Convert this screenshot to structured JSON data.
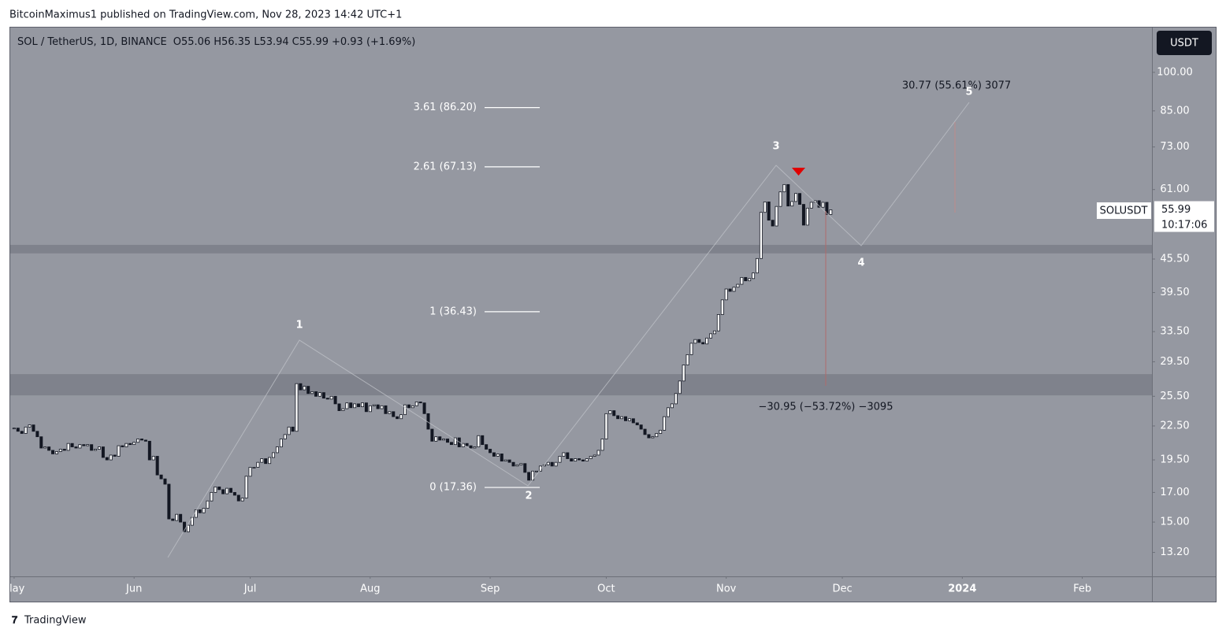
{
  "header": {
    "publisher": "BitcoinMaximus1 published on TradingView.com, Nov 28, 2023 14:42 UTC+1",
    "footer": "TradingView"
  },
  "chart_data": {
    "type": "candlestick",
    "title": "SOL / TetherUS, 1D, BINANCE",
    "ohlc_legend": [
      "O55.06",
      "H56.35",
      "L53.94",
      "C55.99",
      "+0.93 (+1.69%)"
    ],
    "unit": "USDT",
    "symbol": "SOLUSDT",
    "last_price": {
      "value": 55.99,
      "label": "55.99"
    },
    "countdown": "10:17:06",
    "log_scale": true,
    "up_color": "#ffffff",
    "down_color": "#131722",
    "background": "#9598a1",
    "xlim": [
      "2023-04-30",
      "2024-02-19"
    ],
    "xticks": [
      {
        "value": "2023-05-01",
        "label": "May"
      },
      {
        "value": "2023-06-01",
        "label": "Jun"
      },
      {
        "value": "2023-07-01",
        "label": "Jul"
      },
      {
        "value": "2023-08-01",
        "label": "Aug"
      },
      {
        "value": "2023-09-01",
        "label": "Sep"
      },
      {
        "value": "2023-10-01",
        "label": "Oct"
      },
      {
        "value": "2023-11-01",
        "label": "Nov"
      },
      {
        "value": "2023-12-01",
        "label": "Dec"
      },
      {
        "value": "2024-01-01",
        "label": "2024"
      },
      {
        "value": "2024-02-01",
        "label": "Feb"
      }
    ],
    "ylim": [
      11.93,
      120.8
    ],
    "yticks": [
      {
        "value": 100,
        "label": "100.00"
      },
      {
        "value": 85,
        "label": "85.00"
      },
      {
        "value": 73,
        "label": "73.00"
      },
      {
        "value": 61,
        "label": "61.00"
      },
      {
        "value": 45.5,
        "label": "45.50"
      },
      {
        "value": 39.5,
        "label": "39.50"
      },
      {
        "value": 33.5,
        "label": "33.50"
      },
      {
        "value": 29.5,
        "label": "29.50"
      },
      {
        "value": 25.5,
        "label": "25.50"
      },
      {
        "value": 22.5,
        "label": "22.50"
      },
      {
        "value": 19.5,
        "label": "19.50"
      },
      {
        "value": 17,
        "label": "17.00"
      },
      {
        "value": 15,
        "label": "15.00"
      },
      {
        "value": 13.2,
        "label": "13.20"
      }
    ],
    "fib_levels": [
      {
        "label": "3.61 (86.20)",
        "value": 86.2
      },
      {
        "label": "2.61 (67.13)",
        "value": 67.13
      },
      {
        "label": "1 (36.43)",
        "value": 36.43
      },
      {
        "label": "0 (17.36)",
        "value": 17.36
      }
    ],
    "zones": [
      {
        "low": 46.6,
        "high": 48.3
      },
      {
        "low": 25.6,
        "high": 28.0
      }
    ],
    "waves": [
      "1",
      "2",
      "3",
      "4",
      "5"
    ],
    "measures": [
      "30.77 (55.61%) 3077",
      "−30.95 (−53.72%) −3095"
    ],
    "x": [
      "2023-05-01",
      "2023-05-02",
      "2023-05-03",
      "2023-05-04",
      "2023-05-05",
      "2023-05-06",
      "2023-05-07",
      "2023-05-08",
      "2023-05-09",
      "2023-05-10",
      "2023-05-11",
      "2023-05-12",
      "2023-05-13",
      "2023-05-14",
      "2023-05-15",
      "2023-05-16",
      "2023-05-17",
      "2023-05-18",
      "2023-05-19",
      "2023-05-20",
      "2023-05-21",
      "2023-05-22",
      "2023-05-23",
      "2023-05-24",
      "2023-05-25",
      "2023-05-26",
      "2023-05-27",
      "2023-05-28",
      "2023-05-29",
      "2023-05-30",
      "2023-05-31",
      "2023-06-01",
      "2023-06-02",
      "2023-06-03",
      "2023-06-04",
      "2023-06-05",
      "2023-06-06",
      "2023-06-07",
      "2023-06-08",
      "2023-06-09",
      "2023-06-10",
      "2023-06-11",
      "2023-06-12",
      "2023-06-13",
      "2023-06-14",
      "2023-06-15",
      "2023-06-16",
      "2023-06-17",
      "2023-06-18",
      "2023-06-19",
      "2023-06-20",
      "2023-06-21",
      "2023-06-22",
      "2023-06-23",
      "2023-06-24",
      "2023-06-25",
      "2023-06-26",
      "2023-06-27",
      "2023-06-28",
      "2023-06-29",
      "2023-06-30",
      "2023-07-01",
      "2023-07-02",
      "2023-07-03",
      "2023-07-04",
      "2023-07-05",
      "2023-07-06",
      "2023-07-07",
      "2023-07-08",
      "2023-07-09",
      "2023-07-10",
      "2023-07-11",
      "2023-07-12",
      "2023-07-13",
      "2023-07-14",
      "2023-07-15",
      "2023-07-16",
      "2023-07-17",
      "2023-07-18",
      "2023-07-19",
      "2023-07-20",
      "2023-07-21",
      "2023-07-22",
      "2023-07-23",
      "2023-07-24",
      "2023-07-25",
      "2023-07-26",
      "2023-07-27",
      "2023-07-28",
      "2023-07-29",
      "2023-07-30",
      "2023-07-31",
      "2023-08-01",
      "2023-08-02",
      "2023-08-03",
      "2023-08-04",
      "2023-08-05",
      "2023-08-06",
      "2023-08-07",
      "2023-08-08",
      "2023-08-09",
      "2023-08-10",
      "2023-08-11",
      "2023-08-12",
      "2023-08-13",
      "2023-08-14",
      "2023-08-15",
      "2023-08-16",
      "2023-08-17",
      "2023-08-18",
      "2023-08-19",
      "2023-08-20",
      "2023-08-21",
      "2023-08-22",
      "2023-08-23",
      "2023-08-24",
      "2023-08-25",
      "2023-08-26",
      "2023-08-27",
      "2023-08-28",
      "2023-08-29",
      "2023-08-30",
      "2023-08-31",
      "2023-09-01",
      "2023-09-02",
      "2023-09-03",
      "2023-09-04",
      "2023-09-05",
      "2023-09-06",
      "2023-09-07",
      "2023-09-08",
      "2023-09-09",
      "2023-09-10",
      "2023-09-11",
      "2023-09-12",
      "2023-09-13",
      "2023-09-14",
      "2023-09-15",
      "2023-09-16",
      "2023-09-17",
      "2023-09-18",
      "2023-09-19",
      "2023-09-20",
      "2023-09-21",
      "2023-09-22",
      "2023-09-23",
      "2023-09-24",
      "2023-09-25",
      "2023-09-26",
      "2023-09-27",
      "2023-09-28",
      "2023-09-29",
      "2023-09-30",
      "2023-10-01",
      "2023-10-02",
      "2023-10-03",
      "2023-10-04",
      "2023-10-05",
      "2023-10-06",
      "2023-10-07",
      "2023-10-08",
      "2023-10-09",
      "2023-10-10",
      "2023-10-11",
      "2023-10-12",
      "2023-10-13",
      "2023-10-14",
      "2023-10-15",
      "2023-10-16",
      "2023-10-17",
      "2023-10-18",
      "2023-10-19",
      "2023-10-20",
      "2023-10-21",
      "2023-10-22",
      "2023-10-23",
      "2023-10-24",
      "2023-10-25",
      "2023-10-26",
      "2023-10-27",
      "2023-10-28",
      "2023-10-29",
      "2023-10-30",
      "2023-10-31",
      "2023-11-01",
      "2023-11-02",
      "2023-11-03",
      "2023-11-04",
      "2023-11-05",
      "2023-11-06",
      "2023-11-07",
      "2023-11-08",
      "2023-11-09",
      "2023-11-10",
      "2023-11-11",
      "2023-11-12",
      "2023-11-13",
      "2023-11-14",
      "2023-11-15",
      "2023-11-16",
      "2023-11-17",
      "2023-11-18",
      "2023-11-19",
      "2023-11-20",
      "2023-11-21",
      "2023-11-22",
      "2023-11-23",
      "2023-11-24",
      "2023-11-25",
      "2023-11-26",
      "2023-11-27",
      "2023-11-28"
    ],
    "values": [
      22.3,
      22.0,
      21.8,
      22.4,
      22.6,
      22.0,
      21.5,
      20.5,
      20.6,
      20.3,
      20.0,
      20.2,
      20.4,
      20.3,
      20.9,
      20.6,
      20.5,
      20.8,
      20.7,
      20.8,
      20.3,
      20.4,
      20.6,
      19.7,
      19.5,
      19.9,
      19.8,
      20.7,
      20.6,
      20.9,
      20.8,
      21.0,
      21.3,
      21.2,
      21.1,
      19.5,
      19.8,
      18.3,
      18.0,
      17.6,
      15.2,
      15.1,
      15.5,
      15.0,
      14.4,
      14.8,
      15.3,
      15.8,
      15.6,
      15.9,
      16.4,
      17.0,
      17.4,
      17.2,
      16.9,
      17.3,
      17.0,
      16.8,
      16.4,
      16.6,
      18.2,
      18.9,
      18.9,
      19.3,
      19.6,
      19.2,
      19.7,
      20.1,
      20.6,
      21.3,
      21.7,
      22.4,
      22.0,
      26.9,
      26.2,
      26.6,
      25.8,
      26.0,
      25.5,
      25.9,
      25.3,
      25.2,
      25.5,
      24.7,
      24.0,
      24.2,
      24.8,
      24.3,
      24.7,
      24.4,
      24.8,
      23.9,
      24.5,
      24.6,
      24.2,
      24.5,
      23.7,
      23.9,
      23.4,
      23.2,
      23.6,
      24.6,
      24.3,
      24.5,
      24.9,
      24.8,
      23.7,
      22.2,
      21.1,
      21.5,
      21.2,
      21.3,
      21.0,
      20.8,
      21.4,
      20.6,
      20.9,
      20.7,
      20.5,
      20.6,
      21.6,
      20.8,
      20.4,
      20.1,
      19.8,
      20.0,
      19.4,
      19.5,
      19.3,
      19.0,
      19.1,
      19.2,
      18.5,
      17.9,
      18.6,
      18.6,
      19.0,
      19.1,
      19.3,
      19.0,
      19.3,
      19.8,
      20.1,
      19.6,
      19.4,
      19.6,
      19.5,
      19.4,
      19.6,
      19.8,
      19.9,
      20.3,
      21.3,
      23.7,
      24.0,
      23.5,
      23.2,
      23.4,
      23.0,
      23.2,
      22.8,
      22.6,
      22.2,
      21.7,
      21.4,
      21.5,
      21.8,
      22.1,
      23.4,
      24.3,
      24.7,
      25.8,
      27.2,
      29.1,
      30.4,
      31.9,
      32.4,
      32.0,
      31.8,
      32.6,
      33.2,
      33.6,
      36.0,
      38.3,
      40.1,
      39.7,
      40.4,
      40.9,
      42.1,
      41.5,
      41.9,
      42.9,
      45.6,
      55.4,
      57.9,
      53.6,
      52.3,
      56.8,
      60.4,
      62.3,
      56.9,
      58.0,
      60.0,
      57.3,
      52.5,
      56.4,
      57.8,
      58.2,
      56.6,
      57.8,
      54.9,
      55.99
    ]
  }
}
